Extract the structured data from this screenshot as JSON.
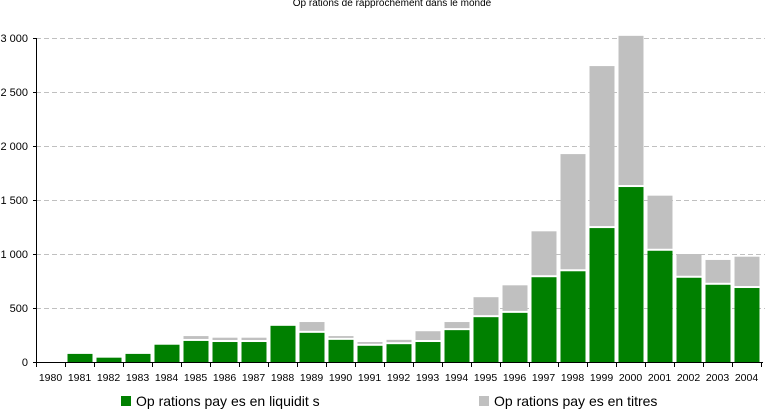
{
  "chart_data": {
    "type": "bar",
    "stacked": true,
    "title": "Op  rations de rapprochement dans le monde",
    "xlabel": "",
    "ylabel": "",
    "ylim": [
      0,
      3000
    ],
    "yticks": [
      0,
      500,
      1000,
      1500,
      2000,
      2500,
      3000
    ],
    "ytick_labels": [
      "0",
      "500",
      "1 000",
      "1 500",
      "2 000",
      "2 500",
      "3 000"
    ],
    "grid": true,
    "legend_position": "bottom",
    "categories": [
      "1980",
      "1981",
      "1982",
      "1983",
      "1984",
      "1985",
      "1986",
      "1987",
      "1988",
      "1989",
      "1990",
      "1991",
      "1992",
      "1993",
      "1994",
      "1995",
      "1996",
      "1997",
      "1998",
      "1999",
      "2000",
      "2001",
      "2002",
      "2003",
      "2004"
    ],
    "series": [
      {
        "name": "Op  rations pay  es en liquidit  s",
        "color": "#008000",
        "values": [
          0,
          75,
          40,
          75,
          160,
          195,
          185,
          185,
          335,
          270,
          205,
          150,
          165,
          185,
          295,
          415,
          455,
          785,
          840,
          1240,
          1620,
          1030,
          780,
          715,
          685
        ]
      },
      {
        "name": "Op  rations pay  es en titres",
        "color": "#c0c0c0",
        "values": [
          0,
          0,
          0,
          0,
          0,
          45,
          40,
          40,
          0,
          100,
          35,
          35,
          40,
          100,
          75,
          185,
          255,
          425,
          1085,
          1500,
          1400,
          510,
          220,
          230,
          290
        ]
      }
    ]
  }
}
